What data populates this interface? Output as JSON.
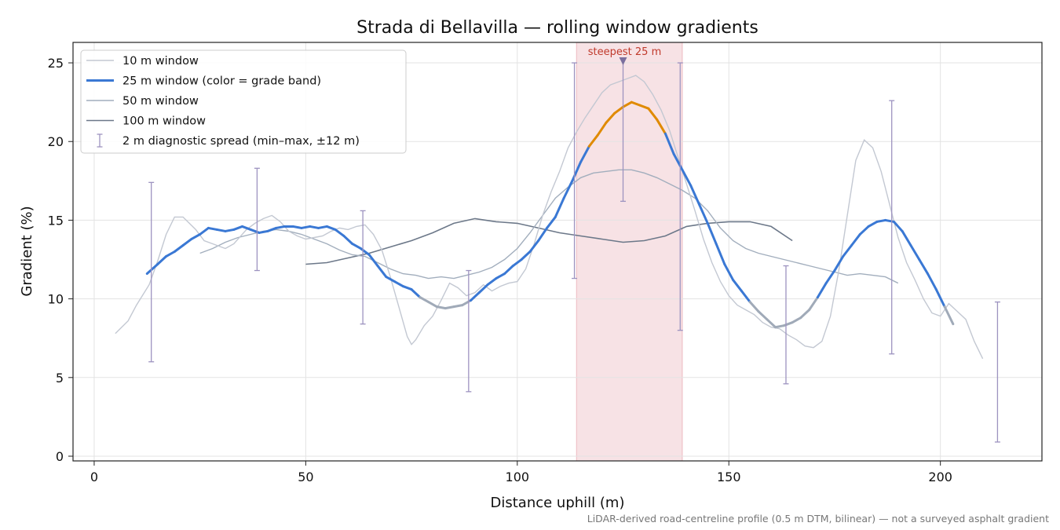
{
  "chart_data": {
    "type": "line",
    "title": "Strada di Bellavilla — rolling window gradients",
    "xlabel": "Distance uphill (m)",
    "ylabel": "Gradient (%)",
    "xlim": [
      -5,
      224
    ],
    "ylim": [
      -0.3,
      26.3
    ],
    "x_ticks": [
      0,
      50,
      100,
      150,
      200
    ],
    "y_ticks": [
      0,
      5,
      10,
      15,
      20,
      25
    ],
    "grid": true,
    "legend_position": "top-left",
    "highlight_band": {
      "x0": 114,
      "x1": 139,
      "color": "#e7a4ae"
    },
    "annotation": {
      "text": "steepest 25 m",
      "x": 125,
      "y": 25.2
    },
    "footnote": "LiDAR-derived road-centreline profile (0.5 m DTM, bilinear) — not a surveyed asphalt gradient",
    "steep_threshold": 20,
    "series": [
      {
        "name": "10 m window",
        "color": "#c3c8d2",
        "points": [
          [
            5,
            7.8
          ],
          [
            8,
            8.6
          ],
          [
            10,
            9.6
          ],
          [
            13,
            10.9
          ],
          [
            15,
            12.4
          ],
          [
            17,
            14.1
          ],
          [
            19,
            15.2
          ],
          [
            21,
            15.2
          ],
          [
            24,
            14.4
          ],
          [
            26,
            13.7
          ],
          [
            28,
            13.5
          ],
          [
            31,
            13.2
          ],
          [
            33,
            13.5
          ],
          [
            36,
            14.4
          ],
          [
            38,
            14.8
          ],
          [
            40,
            15.1
          ],
          [
            42,
            15.3
          ],
          [
            44,
            14.9
          ],
          [
            46,
            14.3
          ],
          [
            48,
            14.0
          ],
          [
            50,
            13.8
          ],
          [
            52,
            13.9
          ],
          [
            54,
            14.0
          ],
          [
            56,
            14.3
          ],
          [
            58,
            14.5
          ],
          [
            60,
            14.4
          ],
          [
            62,
            14.6
          ],
          [
            64,
            14.7
          ],
          [
            66,
            14.1
          ],
          [
            68,
            13.1
          ],
          [
            70,
            11.4
          ],
          [
            72,
            9.5
          ],
          [
            74,
            7.6
          ],
          [
            75,
            7.1
          ],
          [
            76,
            7.4
          ],
          [
            78,
            8.3
          ],
          [
            80,
            8.9
          ],
          [
            82,
            9.9
          ],
          [
            84,
            11.0
          ],
          [
            86,
            10.7
          ],
          [
            88,
            10.2
          ],
          [
            90,
            10.4
          ],
          [
            92,
            10.9
          ],
          [
            94,
            10.5
          ],
          [
            96,
            10.8
          ],
          [
            98,
            11.0
          ],
          [
            100,
            11.1
          ],
          [
            102,
            11.9
          ],
          [
            104,
            13.5
          ],
          [
            106,
            15.3
          ],
          [
            108,
            16.8
          ],
          [
            110,
            18.1
          ],
          [
            112,
            19.6
          ],
          [
            114,
            20.6
          ],
          [
            116,
            21.5
          ],
          [
            118,
            22.3
          ],
          [
            120,
            23.1
          ],
          [
            122,
            23.6
          ],
          [
            124,
            23.8
          ],
          [
            126,
            24.0
          ],
          [
            128,
            24.2
          ],
          [
            130,
            23.8
          ],
          [
            132,
            23.0
          ],
          [
            134,
            22.0
          ],
          [
            136,
            20.7
          ],
          [
            138,
            19.0
          ],
          [
            140,
            17.3
          ],
          [
            142,
            15.6
          ],
          [
            144,
            13.8
          ],
          [
            146,
            12.3
          ],
          [
            148,
            11.1
          ],
          [
            150,
            10.2
          ],
          [
            152,
            9.6
          ],
          [
            154,
            9.3
          ],
          [
            156,
            9.0
          ],
          [
            158,
            8.5
          ],
          [
            160,
            8.2
          ],
          [
            162,
            8.1
          ],
          [
            164,
            7.7
          ],
          [
            166,
            7.4
          ],
          [
            168,
            7.0
          ],
          [
            170,
            6.9
          ],
          [
            172,
            7.3
          ],
          [
            174,
            8.9
          ],
          [
            176,
            11.8
          ],
          [
            178,
            15.3
          ],
          [
            180,
            18.8
          ],
          [
            182,
            20.1
          ],
          [
            184,
            19.6
          ],
          [
            186,
            18.1
          ],
          [
            188,
            16.0
          ],
          [
            190,
            13.9
          ],
          [
            192,
            12.3
          ],
          [
            194,
            11.2
          ],
          [
            196,
            10.0
          ],
          [
            198,
            9.1
          ],
          [
            200,
            8.9
          ],
          [
            202,
            9.7
          ],
          [
            204,
            9.2
          ],
          [
            206,
            8.7
          ],
          [
            208,
            7.3
          ],
          [
            210,
            6.2
          ]
        ]
      },
      {
        "name": "25 m window (color = grade band)",
        "color": "#3a78d4",
        "steep_color": "#e08a00",
        "flat_color": "#a0aab8",
        "points": [
          [
            12.5,
            11.6
          ],
          [
            15,
            12.2
          ],
          [
            17,
            12.7
          ],
          [
            19,
            13.0
          ],
          [
            21,
            13.4
          ],
          [
            23,
            13.8
          ],
          [
            25,
            14.1
          ],
          [
            27,
            14.5
          ],
          [
            29,
            14.4
          ],
          [
            31,
            14.3
          ],
          [
            33,
            14.4
          ],
          [
            35,
            14.6
          ],
          [
            37,
            14.4
          ],
          [
            39,
            14.2
          ],
          [
            41,
            14.3
          ],
          [
            43,
            14.5
          ],
          [
            45,
            14.6
          ],
          [
            47,
            14.6
          ],
          [
            49,
            14.5
          ],
          [
            51,
            14.6
          ],
          [
            53,
            14.5
          ],
          [
            55,
            14.6
          ],
          [
            57,
            14.4
          ],
          [
            59,
            14.0
          ],
          [
            61,
            13.5
          ],
          [
            63,
            13.2
          ],
          [
            65,
            12.8
          ],
          [
            67,
            12.1
          ],
          [
            69,
            11.4
          ],
          [
            71,
            11.1
          ],
          [
            73,
            10.8
          ],
          [
            75,
            10.6
          ],
          [
            77,
            10.1
          ],
          [
            79,
            9.8
          ],
          [
            81,
            9.5
          ],
          [
            83,
            9.4
          ],
          [
            85,
            9.5
          ],
          [
            87,
            9.6
          ],
          [
            89,
            9.9
          ],
          [
            91,
            10.4
          ],
          [
            93,
            10.9
          ],
          [
            95,
            11.3
          ],
          [
            97,
            11.6
          ],
          [
            99,
            12.1
          ],
          [
            101,
            12.5
          ],
          [
            103,
            13.0
          ],
          [
            105,
            13.7
          ],
          [
            107,
            14.5
          ],
          [
            109,
            15.2
          ],
          [
            111,
            16.4
          ],
          [
            113,
            17.5
          ],
          [
            115,
            18.7
          ],
          [
            117,
            19.7
          ],
          [
            119,
            20.4
          ],
          [
            121,
            21.2
          ],
          [
            123,
            21.8
          ],
          [
            125,
            22.2
          ],
          [
            127,
            22.5
          ],
          [
            129,
            22.3
          ],
          [
            131,
            22.1
          ],
          [
            133,
            21.4
          ],
          [
            135,
            20.5
          ],
          [
            137,
            19.2
          ],
          [
            139,
            18.2
          ],
          [
            141,
            17.2
          ],
          [
            143,
            16.0
          ],
          [
            145,
            14.8
          ],
          [
            147,
            13.5
          ],
          [
            149,
            12.2
          ],
          [
            151,
            11.2
          ],
          [
            153,
            10.5
          ],
          [
            155,
            9.8
          ],
          [
            157,
            9.2
          ],
          [
            159,
            8.7
          ],
          [
            161,
            8.2
          ],
          [
            163,
            8.3
          ],
          [
            165,
            8.5
          ],
          [
            167,
            8.8
          ],
          [
            169,
            9.3
          ],
          [
            171,
            10.1
          ],
          [
            173,
            11.0
          ],
          [
            175,
            11.8
          ],
          [
            177,
            12.7
          ],
          [
            179,
            13.4
          ],
          [
            181,
            14.1
          ],
          [
            183,
            14.6
          ],
          [
            185,
            14.9
          ],
          [
            187,
            15.0
          ],
          [
            189,
            14.9
          ],
          [
            191,
            14.3
          ],
          [
            193,
            13.4
          ],
          [
            195,
            12.5
          ],
          [
            197,
            11.6
          ],
          [
            199,
            10.6
          ],
          [
            201,
            9.5
          ],
          [
            203,
            8.4
          ]
        ]
      },
      {
        "name": "50 m window",
        "color": "#a2aebd",
        "points": [
          [
            25,
            12.9
          ],
          [
            28,
            13.2
          ],
          [
            31,
            13.6
          ],
          [
            34,
            13.9
          ],
          [
            37,
            14.1
          ],
          [
            40,
            14.3
          ],
          [
            43,
            14.4
          ],
          [
            46,
            14.3
          ],
          [
            49,
            14.1
          ],
          [
            52,
            13.8
          ],
          [
            55,
            13.5
          ],
          [
            58,
            13.1
          ],
          [
            61,
            12.8
          ],
          [
            64,
            12.7
          ],
          [
            67,
            12.3
          ],
          [
            70,
            11.9
          ],
          [
            73,
            11.6
          ],
          [
            76,
            11.5
          ],
          [
            79,
            11.3
          ],
          [
            82,
            11.4
          ],
          [
            85,
            11.3
          ],
          [
            88,
            11.5
          ],
          [
            91,
            11.7
          ],
          [
            94,
            12.0
          ],
          [
            97,
            12.5
          ],
          [
            100,
            13.2
          ],
          [
            103,
            14.2
          ],
          [
            106,
            15.3
          ],
          [
            109,
            16.4
          ],
          [
            112,
            17.1
          ],
          [
            115,
            17.7
          ],
          [
            118,
            18.0
          ],
          [
            121,
            18.1
          ],
          [
            124,
            18.2
          ],
          [
            127,
            18.2
          ],
          [
            130,
            18.0
          ],
          [
            133,
            17.7
          ],
          [
            136,
            17.3
          ],
          [
            139,
            16.9
          ],
          [
            142,
            16.4
          ],
          [
            145,
            15.6
          ],
          [
            148,
            14.5
          ],
          [
            151,
            13.7
          ],
          [
            154,
            13.2
          ],
          [
            157,
            12.9
          ],
          [
            160,
            12.7
          ],
          [
            163,
            12.5
          ],
          [
            166,
            12.3
          ],
          [
            169,
            12.1
          ],
          [
            172,
            11.9
          ],
          [
            175,
            11.7
          ],
          [
            178,
            11.5
          ],
          [
            181,
            11.6
          ],
          [
            184,
            11.5
          ],
          [
            187,
            11.4
          ],
          [
            190,
            11.0
          ]
        ]
      },
      {
        "name": "100 m window",
        "color": "#6c7889",
        "points": [
          [
            50,
            12.2
          ],
          [
            55,
            12.3
          ],
          [
            60,
            12.6
          ],
          [
            65,
            12.9
          ],
          [
            70,
            13.3
          ],
          [
            75,
            13.7
          ],
          [
            80,
            14.2
          ],
          [
            85,
            14.8
          ],
          [
            90,
            15.1
          ],
          [
            95,
            14.9
          ],
          [
            100,
            14.8
          ],
          [
            105,
            14.5
          ],
          [
            110,
            14.2
          ],
          [
            115,
            14.0
          ],
          [
            120,
            13.8
          ],
          [
            125,
            13.6
          ],
          [
            130,
            13.7
          ],
          [
            135,
            14.0
          ],
          [
            140,
            14.6
          ],
          [
            145,
            14.8
          ],
          [
            150,
            14.9
          ],
          [
            155,
            14.9
          ],
          [
            160,
            14.6
          ],
          [
            165,
            13.7
          ]
        ]
      }
    ],
    "error_bars": {
      "name": "2 m diagnostic spread (min–max, ±12 m)",
      "color": "#9d93c0",
      "items": [
        {
          "x": 13.5,
          "low": 6.0,
          "high": 17.4
        },
        {
          "x": 38.5,
          "low": 11.8,
          "high": 18.3
        },
        {
          "x": 63.5,
          "low": 8.4,
          "high": 15.6
        },
        {
          "x": 88.5,
          "low": 4.1,
          "high": 11.8
        },
        {
          "x": 113.5,
          "low": 11.3,
          "high": 25.0
        },
        {
          "x": 138.5,
          "low": 8.0,
          "high": 25.0
        },
        {
          "x": 163.5,
          "low": 4.6,
          "high": 12.1
        },
        {
          "x": 188.5,
          "low": 6.5,
          "high": 22.6
        },
        {
          "x": 213.5,
          "low": 0.9,
          "high": 9.8
        }
      ]
    },
    "steepest_marker": {
      "x": 125,
      "y": 25.2,
      "low": 16.2
    }
  }
}
